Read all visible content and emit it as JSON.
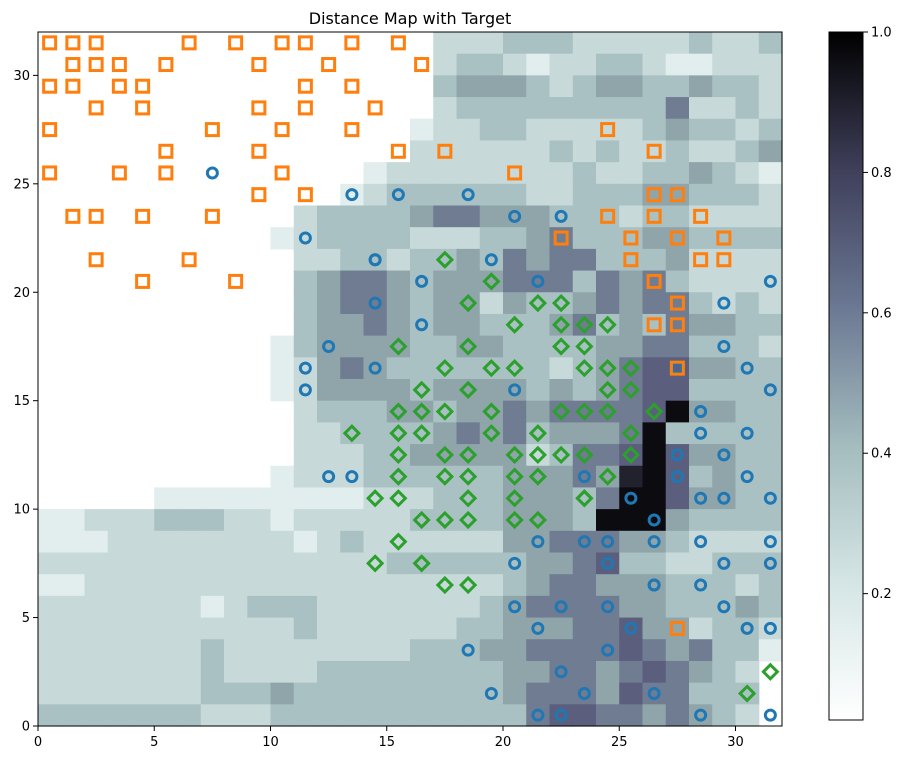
{
  "chart_data": {
    "type": "heatmap",
    "title": "Distance Map with Target",
    "xlabel": "",
    "ylabel": "",
    "xlim": [
      0,
      32
    ],
    "ylim": [
      0,
      32
    ],
    "x_ticks": [
      0,
      5,
      10,
      15,
      20,
      25,
      30
    ],
    "y_ticks": [
      0,
      5,
      10,
      15,
      20,
      25,
      30
    ],
    "grid": false,
    "colormap": "bone_r",
    "colorbar": {
      "range": [
        0.02,
        1.0
      ],
      "ticks": [
        0.2,
        0.4,
        0.6,
        0.8,
        1.0
      ],
      "tick_labels": [
        "0.2",
        "0.4",
        "0.6",
        "0.8",
        "1.0"
      ]
    },
    "masked_color": "#ffffff",
    "heatmap_rows": [
      "00000000000000000222333222223223",
      "00000000000000000233212233211222",
      "00000000000000000344432344334332",
      "00000000000000000233333333352232",
      "00000000000000001223322222343323",
      "00000000000000002222223232232234",
      "00000000000000122222222322334321",
      "00000000000001233333322333443332",
      "00000000000233334554443332332222",
      "00000000001233332223345333443333",
      "00000000000223323343545533342222",
      "00000000000345543444555354532222",
      "00000000000345543442433454553232",
      "00000000000344543443334534354433",
      "00000000001344443344333344553332",
      "00000000001245433333332345664433",
      "00000000001244443444434345663333",
      "00000000000233344344545555694433",
      "00000000000223333454534445933333",
      "00000000000222334444423556964433",
      "00000000001222333333444548963433",
      "00000111111111222333444359964433",
      "11222333221222223333444399943333",
      "11122222222123222222445554432222",
      "22222222222222233333344563322333",
      "11222222222222222222345544433323",
      "22222221233322222223455554433343",
      "22222222222322222233444556442332",
      "22222223222222223334455556545331",
      "22222223222233333333445545654320",
      "22222223334333333333455546553330",
      "33333332223333333333356655454320",
      "33333332223344333333356655443321",
      "22222222222333333334433455544442",
      "33333333333343333333332222222220",
      "33333333333333333333322222222200",
      "33333333333333333333322222220000",
      "22222333334333334333220000000000"
    ],
    "series": [
      {
        "marker": "circle",
        "color": "#1f77b4",
        "x": [
          21.5,
          22.5,
          31.5,
          19.5,
          23.5,
          26.5,
          28.5,
          18.5,
          24.5,
          14.5,
          22.5,
          30.5,
          31.5,
          21.5,
          25.5,
          26.5,
          28.5,
          29.5,
          20.5,
          22.5,
          24.5,
          20.5,
          24.5,
          26.5,
          28.5,
          29.5,
          31.5,
          21.5,
          23.5,
          24.5,
          26.5,
          28.5,
          31.5,
          26.5,
          25.5,
          29.5,
          31.5,
          12.5,
          13.5,
          23.5,
          27.5,
          30.5,
          27.5,
          29.5,
          28.5,
          30.5,
          28.5,
          11.5,
          20.5,
          31.5,
          11.5,
          14.5,
          27.5,
          30.5,
          12.5,
          29.5,
          16.5,
          14.5,
          29.5,
          16.5,
          21.5,
          31.5,
          14.5,
          19.5,
          11.5,
          20.5,
          22.5,
          13.5,
          15.5,
          18.5,
          7.5
        ],
        "y": [
          0.5,
          0.5,
          0.5,
          1.5,
          1.5,
          1.5,
          0.5,
          3.5,
          3.5,
          21.5,
          23.5,
          4.5,
          4.5,
          4.5,
          4.5,
          6.5,
          6.5,
          5.5,
          5.5,
          5.5,
          5.5,
          7.5,
          7.5,
          8.5,
          8.5,
          7.5,
          7.5,
          8.5,
          8.5,
          8.5,
          9.5,
          10.5,
          10.5,
          6.5,
          10.5,
          10.5,
          8.5,
          11.5,
          11.5,
          11.5,
          11.5,
          11.5,
          12.5,
          12.5,
          13.5,
          13.5,
          14.5,
          15.5,
          15.5,
          15.5,
          16.5,
          16.5,
          16.5,
          16.5,
          17.5,
          17.5,
          18.5,
          19.5,
          19.5,
          20.5,
          20.5,
          20.5,
          21.5,
          21.5,
          22.5,
          23.5,
          2.5,
          24.5,
          24.5,
          24.5,
          25.5
        ]
      },
      {
        "marker": "square",
        "color": "#ff7f0e",
        "x": [
          0.5,
          1.5,
          2.5,
          6.5,
          8.5,
          10.5,
          11.5,
          13.5,
          15.5,
          1.5,
          2.5,
          3.5,
          5.5,
          9.5,
          12.5,
          16.5,
          0.5,
          1.5,
          3.5,
          4.5,
          11.5,
          13.5,
          2.5,
          4.5,
          9.5,
          11.5,
          14.5,
          0.5,
          7.5,
          10.5,
          13.5,
          24.5,
          5.5,
          9.5,
          15.5,
          17.5,
          26.5,
          0.5,
          3.5,
          5.5,
          10.5,
          20.5,
          9.5,
          11.5,
          26.5,
          27.5,
          1.5,
          2.5,
          4.5,
          7.5,
          24.5,
          26.5,
          28.5,
          22.5,
          25.5,
          27.5,
          29.5,
          2.5,
          6.5,
          25.5,
          28.5,
          29.5,
          4.5,
          8.5,
          26.5,
          27.5,
          26.5,
          27.5,
          27.5,
          27.5
        ],
        "y": [
          31.5,
          31.5,
          31.5,
          31.5,
          31.5,
          31.5,
          31.5,
          31.5,
          31.5,
          30.5,
          30.5,
          30.5,
          30.5,
          30.5,
          30.5,
          30.5,
          29.5,
          29.5,
          29.5,
          29.5,
          29.5,
          29.5,
          28.5,
          28.5,
          28.5,
          28.5,
          28.5,
          27.5,
          27.5,
          27.5,
          27.5,
          27.5,
          26.5,
          26.5,
          26.5,
          26.5,
          26.5,
          25.5,
          25.5,
          25.5,
          25.5,
          25.5,
          24.5,
          24.5,
          24.5,
          24.5,
          23.5,
          23.5,
          23.5,
          23.5,
          23.5,
          23.5,
          23.5,
          22.5,
          22.5,
          22.5,
          22.5,
          21.5,
          21.5,
          21.5,
          21.5,
          21.5,
          20.5,
          20.5,
          20.5,
          19.5,
          18.5,
          18.5,
          16.5,
          4.5
        ]
      },
      {
        "marker": "diamond",
        "color": "#2ca02c",
        "x": [
          17.5,
          19.5,
          18.5,
          21.5,
          22.5,
          20.5,
          22.5,
          23.5,
          24.5,
          15.5,
          18.5,
          22.5,
          23.5,
          17.5,
          19.5,
          20.5,
          23.5,
          24.5,
          25.5,
          16.5,
          18.5,
          24.5,
          25.5,
          15.5,
          16.5,
          17.5,
          19.5,
          22.5,
          23.5,
          24.5,
          26.5,
          13.5,
          15.5,
          16.5,
          19.5,
          21.5,
          25.5,
          15.5,
          17.5,
          18.5,
          20.5,
          21.5,
          22.5,
          23.5,
          25.5,
          15.5,
          17.5,
          18.5,
          20.5,
          21.5,
          23.5,
          24.5,
          14.5,
          15.5,
          18.5,
          20.5,
          23.5,
          16.5,
          17.5,
          18.5,
          20.5,
          21.5,
          15.5,
          14.5,
          16.5,
          17.5,
          18.5,
          31.5,
          30.5
        ],
        "y": [
          21.5,
          20.5,
          19.5,
          19.5,
          19.5,
          18.5,
          18.5,
          18.5,
          18.5,
          17.5,
          17.5,
          17.5,
          17.5,
          16.5,
          16.5,
          16.5,
          16.5,
          16.5,
          16.5,
          15.5,
          15.5,
          15.5,
          15.5,
          14.5,
          14.5,
          14.5,
          14.5,
          14.5,
          14.5,
          14.5,
          14.5,
          13.5,
          13.5,
          13.5,
          13.5,
          13.5,
          13.5,
          12.5,
          12.5,
          12.5,
          12.5,
          12.5,
          12.5,
          12.5,
          12.5,
          11.5,
          11.5,
          11.5,
          11.5,
          11.5,
          10.5,
          11.5,
          10.5,
          10.5,
          10.5,
          10.5,
          10.5,
          9.5,
          9.5,
          9.5,
          9.5,
          9.5,
          8.5,
          7.5,
          7.5,
          6.5,
          6.5,
          2.5,
          1.5
        ]
      }
    ]
  }
}
